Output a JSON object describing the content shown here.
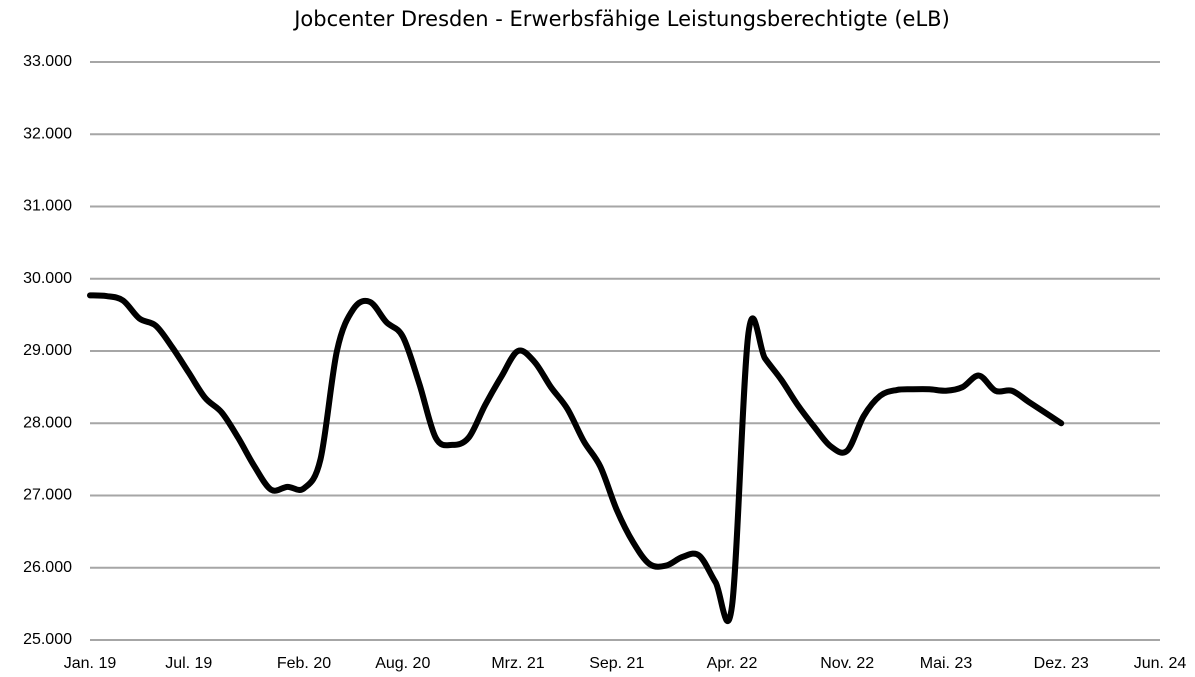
{
  "chart_data": {
    "type": "line",
    "title": "Jobcenter Dresden - Erwerbsfähige Leistungsberechtigte (eLB)",
    "categories": [
      "Jan. 19",
      null,
      null,
      null,
      null,
      null,
      "Jul. 19",
      null,
      null,
      null,
      null,
      null,
      null,
      "Feb. 20",
      null,
      null,
      null,
      null,
      null,
      "Aug. 20",
      null,
      null,
      null,
      null,
      null,
      null,
      "Mrz. 21",
      null,
      null,
      null,
      null,
      null,
      "Sep. 21",
      null,
      null,
      null,
      null,
      null,
      null,
      "Apr. 22",
      null,
      null,
      null,
      null,
      null,
      null,
      "Nov. 22",
      null,
      null,
      null,
      null,
      null,
      "Mai. 23",
      null,
      null,
      null,
      null,
      null,
      null,
      "Dez. 23",
      null,
      null,
      null,
      null,
      null,
      "Jun. 24"
    ],
    "series": [
      {
        "color": "#000000",
        "values": [
          29770,
          29760,
          29700,
          29450,
          29350,
          29050,
          28700,
          28350,
          28150,
          27800,
          27400,
          27080,
          27120,
          27100,
          27500,
          29000,
          29580,
          29680,
          29400,
          29200,
          28550,
          27800,
          27700,
          27800,
          28250,
          28650,
          29000,
          28850,
          28500,
          28200,
          27750,
          27400,
          26800,
          26350,
          26050,
          26030,
          26150,
          26170,
          25800,
          25470,
          29250,
          28900,
          28600,
          28250,
          27950,
          27680,
          27620,
          28100,
          28380,
          28460,
          28470,
          28470,
          28450,
          28500,
          28660,
          28450,
          28450,
          28300,
          28150,
          28000,
          null,
          null,
          null,
          null,
          null,
          null
        ]
      }
    ],
    "ylim": [
      25000,
      33000
    ],
    "yticks": [
      {
        "value": 25000,
        "label": "25.000"
      },
      {
        "value": 26000,
        "label": "26.000"
      },
      {
        "value": 27000,
        "label": "27.000"
      },
      {
        "value": 28000,
        "label": "28.000"
      },
      {
        "value": 29000,
        "label": "29.000"
      },
      {
        "value": 30000,
        "label": "30.000"
      },
      {
        "value": 31000,
        "label": "31.000"
      },
      {
        "value": 32000,
        "label": "32.000"
      },
      {
        "value": 33000,
        "label": "33.000"
      }
    ],
    "grid": true
  }
}
